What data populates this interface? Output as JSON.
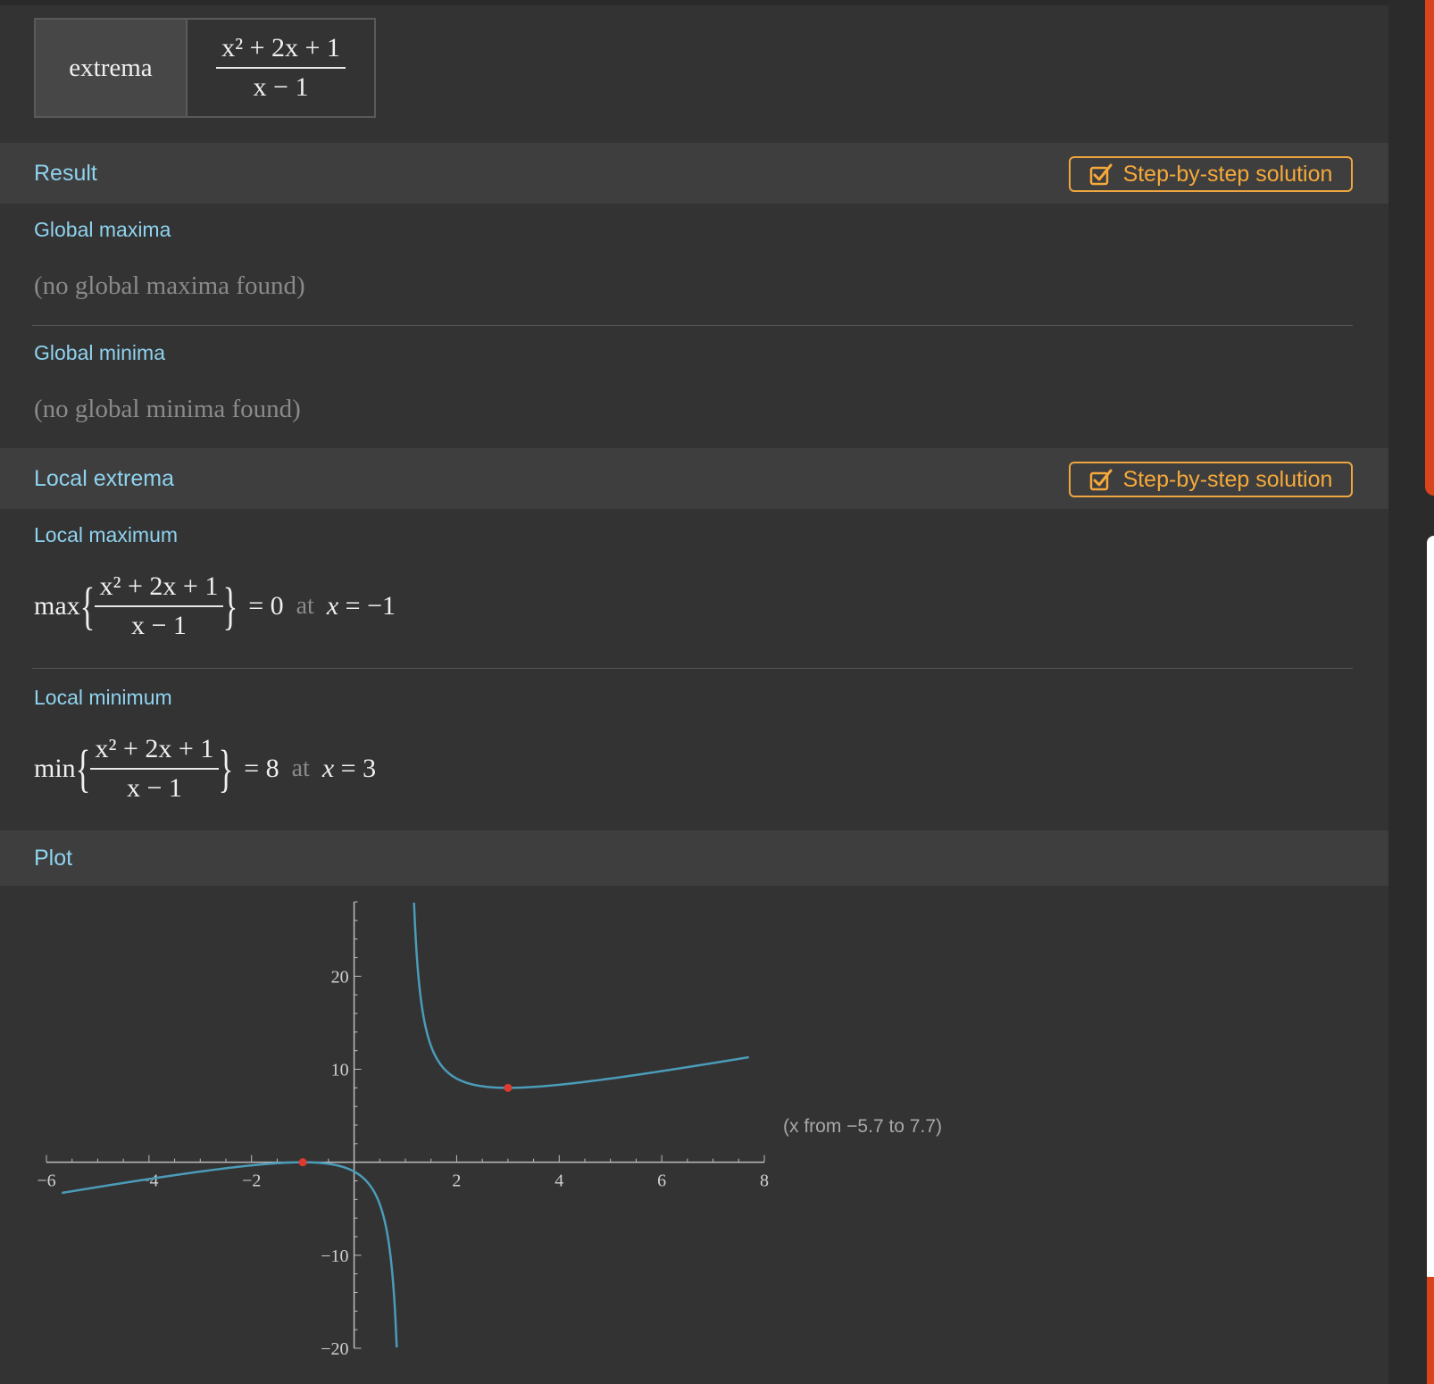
{
  "input": {
    "command": "extrema",
    "expression": {
      "num": "x² + 2x + 1",
      "den": "x − 1"
    }
  },
  "pods": {
    "result": {
      "title": "Result",
      "step_label": "Step-by-step solution",
      "global_max": {
        "title": "Global maxima",
        "text": "(no global maxima found)"
      },
      "global_min": {
        "title": "Global minima",
        "text": "(no global minima found)"
      }
    },
    "local": {
      "title": "Local extrema",
      "step_label": "Step-by-step solution",
      "local_max": {
        "title": "Local maximum",
        "fn": "max",
        "value": "0",
        "at": "at",
        "x_value": "−1"
      },
      "local_min": {
        "title": "Local minimum",
        "fn": "min",
        "value": "8",
        "at": "at",
        "x_value": "3"
      }
    },
    "plot": {
      "title": "Plot",
      "range_note": "(x from −5.7 to 7.7)"
    }
  },
  "colors": {
    "accent_text": "#8fd3ef",
    "button": "#f6a93b",
    "curve": "#4a9cb8",
    "point": "#e03a2e"
  },
  "icons": {
    "step_button": "checkbox-icon"
  },
  "chart_data": {
    "type": "line",
    "function": "(x^2 + 2x + 1)/(x - 1)",
    "x_range": [
      -5.7,
      7.7
    ],
    "xlim": [
      -6,
      8
    ],
    "ylim": [
      -20,
      28
    ],
    "x_ticks": [
      -6,
      -4,
      -2,
      2,
      4,
      6,
      8
    ],
    "y_ticks": [
      -20,
      -10,
      10,
      20
    ],
    "x_tick_labels": [
      "−6",
      "−4",
      "−2",
      "2",
      "4",
      "6",
      "8"
    ],
    "y_tick_labels": [
      "−20",
      "−10",
      "10",
      "20"
    ],
    "asymptote": 1,
    "marked_points": [
      {
        "x": -1,
        "y": 0
      },
      {
        "x": 3,
        "y": 8
      }
    ]
  }
}
